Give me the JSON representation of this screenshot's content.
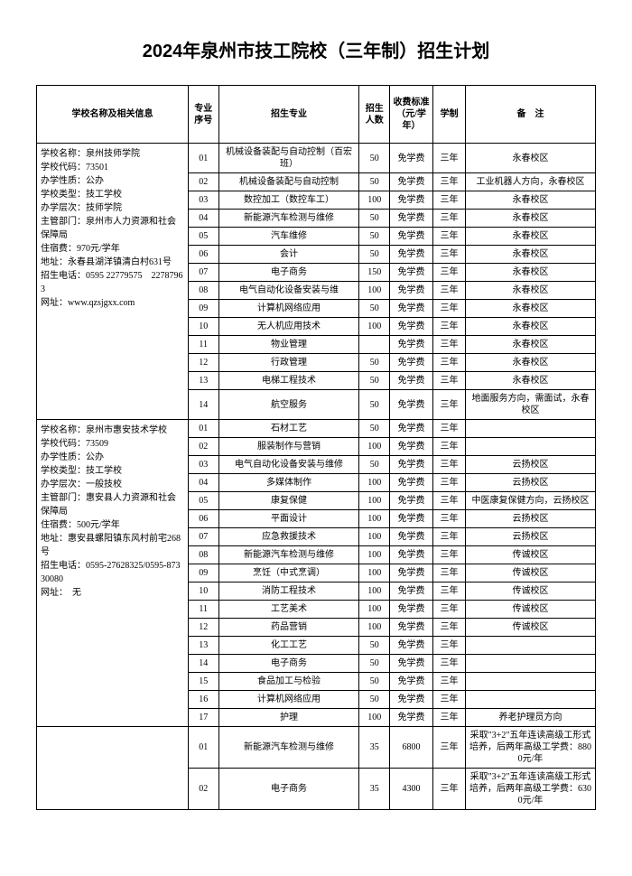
{
  "title": "2024年泉州市技工院校（三年制）招生计划",
  "headers": {
    "info": "学校名称及相关信息",
    "seq": "专业序号",
    "major": "招生专业",
    "count": "招生人数",
    "fee": "收费标准（元/学年）",
    "system": "学制",
    "remark": "备　注"
  },
  "school1": {
    "info": "学校名称：泉州技师学院\n学校代码：73501\n办学性质：公办\n学校类型：技工学校\n办学层次：技师学院\n主管部门：泉州市人力资源和社会保障局\n住宿费：970元/学年\n地址：永春县湖洋镇清白村631号\n招生电话：0595 22779575　22787963\n网址：www.qzsjgxx.com",
    "rows": [
      {
        "seq": "01",
        "major": "机械设备装配与自动控制（百宏班）",
        "count": "50",
        "fee": "免学费",
        "system": "三年",
        "remark": "永春校区"
      },
      {
        "seq": "02",
        "major": "机械设备装配与自动控制",
        "count": "50",
        "fee": "免学费",
        "system": "三年",
        "remark": "工业机器人方向，永春校区"
      },
      {
        "seq": "03",
        "major": "数控加工（数控车工）",
        "count": "100",
        "fee": "免学费",
        "system": "三年",
        "remark": "永春校区"
      },
      {
        "seq": "04",
        "major": "新能源汽车检测与维修",
        "count": "50",
        "fee": "免学费",
        "system": "三年",
        "remark": "永春校区"
      },
      {
        "seq": "05",
        "major": "汽车维修",
        "count": "50",
        "fee": "免学费",
        "system": "三年",
        "remark": "永春校区"
      },
      {
        "seq": "06",
        "major": "会计",
        "count": "50",
        "fee": "免学费",
        "system": "三年",
        "remark": "永春校区"
      },
      {
        "seq": "07",
        "major": "电子商务",
        "count": "150",
        "fee": "免学费",
        "system": "三年",
        "remark": "永春校区"
      },
      {
        "seq": "08",
        "major": "电气自动化设备安装与维",
        "count": "100",
        "fee": "免学费",
        "system": "三年",
        "remark": "永春校区"
      },
      {
        "seq": "09",
        "major": "计算机网络应用",
        "count": "50",
        "fee": "免学费",
        "system": "三年",
        "remark": "永春校区"
      },
      {
        "seq": "10",
        "major": "无人机应用技术",
        "count": "100",
        "fee": "免学费",
        "system": "三年",
        "remark": "永春校区"
      },
      {
        "seq": "11",
        "major": "物业管理",
        "count": "",
        "fee": "免学费",
        "system": "三年",
        "remark": "永春校区"
      },
      {
        "seq": "12",
        "major": "行政管理",
        "count": "50",
        "fee": "免学费",
        "system": "三年",
        "remark": "永春校区"
      },
      {
        "seq": "13",
        "major": "电梯工程技术",
        "count": "50",
        "fee": "免学费",
        "system": "三年",
        "remark": "永春校区"
      },
      {
        "seq": "14",
        "major": "航空服务",
        "count": "50",
        "fee": "免学费",
        "system": "三年",
        "remark": "地面服务方向，需面试，永春校区"
      }
    ]
  },
  "school2": {
    "info": "学校名称：泉州市惠安技术学校\n学校代码：73509\n办学性质：公办\n学校类型：技工学校\n办学层次：一般技校\n主管部门：惠安县人力资源和社会保障局\n住宿费：500元/学年\n地址：惠安县螺阳镇东风村前宅268号\n招生电话：0595-27628325/0595-87330080\n网址：　无",
    "rows": [
      {
        "seq": "01",
        "major": "石材工艺",
        "count": "50",
        "fee": "免学费",
        "system": "三年",
        "remark": ""
      },
      {
        "seq": "02",
        "major": "服装制作与营销",
        "count": "100",
        "fee": "免学费",
        "system": "三年",
        "remark": ""
      },
      {
        "seq": "03",
        "major": "电气自动化设备安装与维修",
        "count": "50",
        "fee": "免学费",
        "system": "三年",
        "remark": "云扬校区"
      },
      {
        "seq": "04",
        "major": "多媒体制作",
        "count": "100",
        "fee": "免学费",
        "system": "三年",
        "remark": "云扬校区"
      },
      {
        "seq": "05",
        "major": "康复保健",
        "count": "100",
        "fee": "免学费",
        "system": "三年",
        "remark": "中医康复保健方向，云扬校区"
      },
      {
        "seq": "06",
        "major": "平面设计",
        "count": "100",
        "fee": "免学费",
        "system": "三年",
        "remark": "云扬校区"
      },
      {
        "seq": "07",
        "major": "应急救援技术",
        "count": "100",
        "fee": "免学费",
        "system": "三年",
        "remark": "云扬校区"
      },
      {
        "seq": "08",
        "major": "新能源汽车检测与维修",
        "count": "100",
        "fee": "免学费",
        "system": "三年",
        "remark": "传诚校区"
      },
      {
        "seq": "09",
        "major": "烹饪（中式烹调）",
        "count": "100",
        "fee": "免学费",
        "system": "三年",
        "remark": "传诚校区"
      },
      {
        "seq": "10",
        "major": "消防工程技术",
        "count": "100",
        "fee": "免学费",
        "system": "三年",
        "remark": "传诚校区"
      },
      {
        "seq": "11",
        "major": "工艺美术",
        "count": "100",
        "fee": "免学费",
        "system": "三年",
        "remark": "传诚校区"
      },
      {
        "seq": "12",
        "major": "药品营销",
        "count": "100",
        "fee": "免学费",
        "system": "三年",
        "remark": "传诚校区"
      },
      {
        "seq": "13",
        "major": "化工工艺",
        "count": "50",
        "fee": "免学费",
        "system": "三年",
        "remark": ""
      },
      {
        "seq": "14",
        "major": "电子商务",
        "count": "50",
        "fee": "免学费",
        "system": "三年",
        "remark": ""
      },
      {
        "seq": "15",
        "major": "食品加工与检验",
        "count": "50",
        "fee": "免学费",
        "system": "三年",
        "remark": ""
      },
      {
        "seq": "16",
        "major": "计算机网络应用",
        "count": "50",
        "fee": "免学费",
        "system": "三年",
        "remark": ""
      },
      {
        "seq": "17",
        "major": "护理",
        "count": "100",
        "fee": "免学费",
        "system": "三年",
        "remark": "养老护理员方向"
      }
    ]
  },
  "school3": {
    "rows": [
      {
        "seq": "01",
        "major": "新能源汽车检测与维修",
        "count": "35",
        "fee": "6800",
        "system": "三年",
        "remark": "采取\"3+2\"五年连读高级工形式培养，后两年高级工学费：8800元/年"
      },
      {
        "seq": "02",
        "major": "电子商务",
        "count": "35",
        "fee": "4300",
        "system": "三年",
        "remark": "采取\"3+2\"五年连读高级工形式培养，后两年高级工学费：6300元/年"
      }
    ]
  }
}
